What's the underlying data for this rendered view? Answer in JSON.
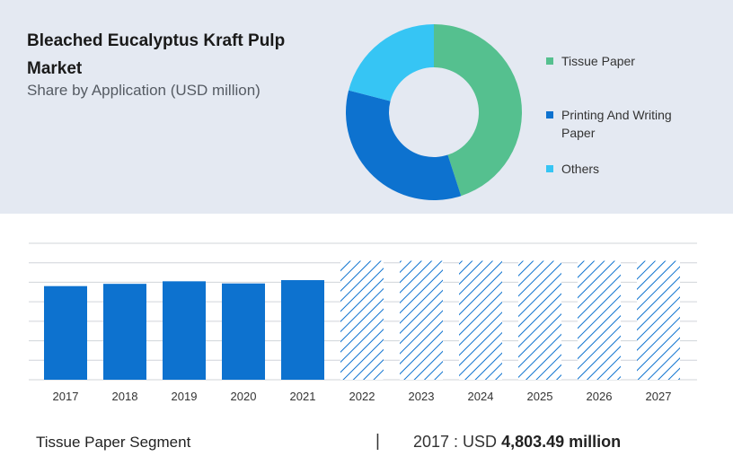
{
  "header": {
    "title": "Bleached Eucalyptus Kraft Pulp Market",
    "subtitle": "Share by Application (USD million)"
  },
  "chart_data": [
    {
      "type": "pie",
      "style": "donut",
      "labels": [
        "Tissue Paper",
        "Printing And Writing Paper",
        "Others"
      ],
      "values": [
        45,
        34,
        21
      ],
      "colors": [
        "#55c08f",
        "#0d72cf",
        "#36c5f4"
      ],
      "legend_position": "right"
    },
    {
      "type": "bar",
      "categories": [
        "2017",
        "2018",
        "2019",
        "2020",
        "2021",
        "2022",
        "2023",
        "2024",
        "2025",
        "2026",
        "2027"
      ],
      "values": [
        4803.49,
        4920,
        5050,
        4940,
        5110,
        6100,
        6100,
        6100,
        6100,
        6100,
        6100
      ],
      "forecast_from": "2022",
      "ylim": [
        0,
        7000
      ],
      "grid": true,
      "colors": {
        "actual": "#0d72cf",
        "forecast_hatch": "#0d72cf"
      }
    }
  ],
  "footer": {
    "segment": "Tissue Paper Segment",
    "separator": "|",
    "year_label": "2017 : USD",
    "value": "4,803.49 million"
  }
}
